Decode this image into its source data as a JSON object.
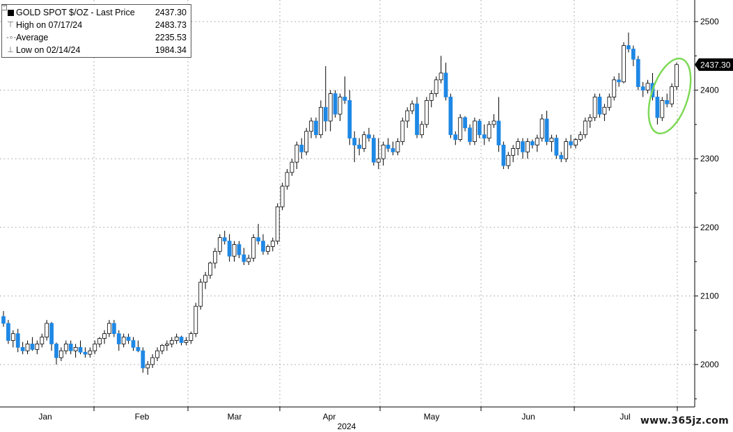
{
  "chart_data": {
    "type": "candlestick",
    "title": "GOLD SPOT $/OZ - Last Price",
    "last_price": "2437.30",
    "legend": [
      {
        "label": "GOLD SPOT $/OZ - Last Price",
        "value": "2437.30",
        "icon": "black-square-icon"
      },
      {
        "label": "High on 07/17/24",
        "value": "2483.73",
        "icon": "high-marker-icon"
      },
      {
        "label": "Average",
        "value": "2235.53",
        "icon": "average-marker-icon"
      },
      {
        "label": "Low on 02/14/24",
        "value": "1984.34",
        "icon": "low-marker-icon"
      }
    ],
    "y_axis": {
      "position": "right",
      "range": [
        1945,
        2510
      ],
      "ticks": [
        2000,
        2100,
        2200,
        2300,
        2400,
        2500
      ]
    },
    "x_axis": {
      "months": [
        "Jan",
        "Feb",
        "Mar",
        "Apr",
        "May",
        "Jun",
        "Jul"
      ],
      "year_label": "2024"
    },
    "grid": true,
    "colors": {
      "up": "#ffffff",
      "down": "#1e88e5",
      "grid": "#9a9a9a",
      "highlight": "#7ed957"
    },
    "candles": [
      [
        2070,
        2078,
        2055,
        2060
      ],
      [
        2060,
        2065,
        2030,
        2035
      ],
      [
        2035,
        2050,
        2025,
        2045
      ],
      [
        2045,
        2052,
        2018,
        2025
      ],
      [
        2025,
        2033,
        2015,
        2020
      ],
      [
        2020,
        2035,
        2015,
        2030
      ],
      [
        2030,
        2040,
        2020,
        2022
      ],
      [
        2022,
        2035,
        2015,
        2030
      ],
      [
        2030,
        2045,
        2025,
        2040
      ],
      [
        2040,
        2065,
        2035,
        2060
      ],
      [
        2060,
        2062,
        2020,
        2030
      ],
      [
        2030,
        2032,
        2000,
        2010
      ],
      [
        2010,
        2025,
        2005,
        2020
      ],
      [
        2020,
        2035,
        2015,
        2030
      ],
      [
        2030,
        2035,
        2015,
        2020
      ],
      [
        2020,
        2030,
        2010,
        2025
      ],
      [
        2025,
        2035,
        2015,
        2018
      ],
      [
        2018,
        2025,
        2010,
        2015
      ],
      [
        2015,
        2025,
        2010,
        2020
      ],
      [
        2020,
        2035,
        2015,
        2030
      ],
      [
        2030,
        2040,
        2025,
        2038
      ],
      [
        2038,
        2050,
        2030,
        2045
      ],
      [
        2045,
        2065,
        2040,
        2060
      ],
      [
        2060,
        2065,
        2040,
        2045
      ],
      [
        2045,
        2050,
        2020,
        2030
      ],
      [
        2030,
        2045,
        2025,
        2040
      ],
      [
        2040,
        2045,
        2030,
        2035
      ],
      [
        2035,
        2040,
        2020,
        2025
      ],
      [
        2025,
        2035,
        2018,
        2020
      ],
      [
        2020,
        2025,
        1988,
        1995
      ],
      [
        1995,
        2005,
        1985,
        2000
      ],
      [
        2000,
        2015,
        1995,
        2010
      ],
      [
        2010,
        2025,
        2005,
        2020
      ],
      [
        2020,
        2030,
        2015,
        2028
      ],
      [
        2028,
        2035,
        2020,
        2030
      ],
      [
        2030,
        2040,
        2025,
        2035
      ],
      [
        2035,
        2045,
        2030,
        2040
      ],
      [
        2040,
        2042,
        2028,
        2032
      ],
      [
        2032,
        2040,
        2028,
        2035
      ],
      [
        2035,
        2048,
        2030,
        2045
      ],
      [
        2045,
        2090,
        2040,
        2085
      ],
      [
        2085,
        2125,
        2080,
        2120
      ],
      [
        2120,
        2135,
        2110,
        2130
      ],
      [
        2130,
        2150,
        2125,
        2148
      ],
      [
        2148,
        2170,
        2140,
        2165
      ],
      [
        2165,
        2190,
        2160,
        2185
      ],
      [
        2185,
        2195,
        2175,
        2180
      ],
      [
        2180,
        2190,
        2150,
        2158
      ],
      [
        2158,
        2180,
        2150,
        2175
      ],
      [
        2175,
        2180,
        2155,
        2160
      ],
      [
        2160,
        2170,
        2145,
        2150
      ],
      [
        2150,
        2160,
        2145,
        2155
      ],
      [
        2155,
        2190,
        2150,
        2185
      ],
      [
        2185,
        2205,
        2175,
        2180
      ],
      [
        2180,
        2190,
        2160,
        2165
      ],
      [
        2165,
        2175,
        2160,
        2172
      ],
      [
        2172,
        2185,
        2165,
        2180
      ],
      [
        2180,
        2235,
        2175,
        2230
      ],
      [
        2230,
        2265,
        2225,
        2260
      ],
      [
        2260,
        2285,
        2255,
        2280
      ],
      [
        2280,
        2300,
        2275,
        2295
      ],
      [
        2295,
        2325,
        2285,
        2320
      ],
      [
        2320,
        2330,
        2300,
        2310
      ],
      [
        2310,
        2345,
        2305,
        2340
      ],
      [
        2340,
        2360,
        2330,
        2355
      ],
      [
        2355,
        2360,
        2330,
        2335
      ],
      [
        2335,
        2385,
        2330,
        2375
      ],
      [
        2375,
        2435,
        2340,
        2355
      ],
      [
        2355,
        2400,
        2340,
        2395
      ],
      [
        2395,
        2400,
        2360,
        2365
      ],
      [
        2365,
        2395,
        2355,
        2390
      ],
      [
        2390,
        2420,
        2380,
        2385
      ],
      [
        2385,
        2400,
        2320,
        2330
      ],
      [
        2330,
        2340,
        2295,
        2320
      ],
      [
        2320,
        2330,
        2305,
        2315
      ],
      [
        2315,
        2340,
        2310,
        2335
      ],
      [
        2335,
        2345,
        2325,
        2330
      ],
      [
        2330,
        2335,
        2290,
        2295
      ],
      [
        2295,
        2330,
        2285,
        2300
      ],
      [
        2300,
        2325,
        2290,
        2320
      ],
      [
        2320,
        2330,
        2310,
        2315
      ],
      [
        2315,
        2325,
        2305,
        2310
      ],
      [
        2310,
        2330,
        2305,
        2325
      ],
      [
        2325,
        2360,
        2320,
        2355
      ],
      [
        2355,
        2375,
        2345,
        2370
      ],
      [
        2370,
        2385,
        2365,
        2380
      ],
      [
        2380,
        2390,
        2330,
        2335
      ],
      [
        2335,
        2355,
        2330,
        2350
      ],
      [
        2350,
        2390,
        2345,
        2385
      ],
      [
        2385,
        2400,
        2375,
        2395
      ],
      [
        2395,
        2420,
        2390,
        2415
      ],
      [
        2415,
        2450,
        2410,
        2425
      ],
      [
        2425,
        2440,
        2385,
        2390
      ],
      [
        2390,
        2395,
        2330,
        2335
      ],
      [
        2335,
        2340,
        2320,
        2328
      ],
      [
        2328,
        2365,
        2325,
        2360
      ],
      [
        2360,
        2362,
        2340,
        2345
      ],
      [
        2345,
        2350,
        2320,
        2325
      ],
      [
        2325,
        2360,
        2320,
        2355
      ],
      [
        2355,
        2358,
        2330,
        2335
      ],
      [
        2335,
        2350,
        2320,
        2330
      ],
      [
        2330,
        2355,
        2325,
        2350
      ],
      [
        2350,
        2365,
        2345,
        2355
      ],
      [
        2355,
        2390,
        2310,
        2320
      ],
      [
        2320,
        2325,
        2285,
        2290
      ],
      [
        2290,
        2310,
        2285,
        2305
      ],
      [
        2305,
        2320,
        2295,
        2315
      ],
      [
        2315,
        2330,
        2305,
        2325
      ],
      [
        2325,
        2330,
        2300,
        2310
      ],
      [
        2310,
        2330,
        2300,
        2325
      ],
      [
        2325,
        2328,
        2315,
        2320
      ],
      [
        2320,
        2335,
        2310,
        2330
      ],
      [
        2330,
        2365,
        2325,
        2358
      ],
      [
        2358,
        2370,
        2320,
        2325
      ],
      [
        2325,
        2335,
        2310,
        2330
      ],
      [
        2330,
        2335,
        2300,
        2305
      ],
      [
        2305,
        2310,
        2295,
        2300
      ],
      [
        2300,
        2330,
        2295,
        2325
      ],
      [
        2325,
        2335,
        2315,
        2320
      ],
      [
        2320,
        2330,
        2315,
        2328
      ],
      [
        2328,
        2340,
        2325,
        2335
      ],
      [
        2335,
        2360,
        2330,
        2355
      ],
      [
        2355,
        2365,
        2345,
        2360
      ],
      [
        2360,
        2395,
        2355,
        2390
      ],
      [
        2390,
        2395,
        2360,
        2365
      ],
      [
        2365,
        2380,
        2355,
        2375
      ],
      [
        2375,
        2395,
        2370,
        2390
      ],
      [
        2390,
        2420,
        2385,
        2415
      ],
      [
        2415,
        2425,
        2405,
        2412
      ],
      [
        2412,
        2470,
        2410,
        2465
      ],
      [
        2465,
        2484,
        2455,
        2460
      ],
      [
        2460,
        2465,
        2435,
        2445
      ],
      [
        2445,
        2450,
        2400,
        2405
      ],
      [
        2405,
        2412,
        2390,
        2400
      ],
      [
        2400,
        2415,
        2395,
        2410
      ],
      [
        2410,
        2425,
        2385,
        2390
      ],
      [
        2390,
        2400,
        2350,
        2360
      ],
      [
        2360,
        2390,
        2355,
        2385
      ],
      [
        2385,
        2395,
        2375,
        2380
      ],
      [
        2380,
        2410,
        2375,
        2405
      ],
      [
        2405,
        2440,
        2400,
        2437.3
      ]
    ]
  },
  "watermark": "www.365jz.com"
}
